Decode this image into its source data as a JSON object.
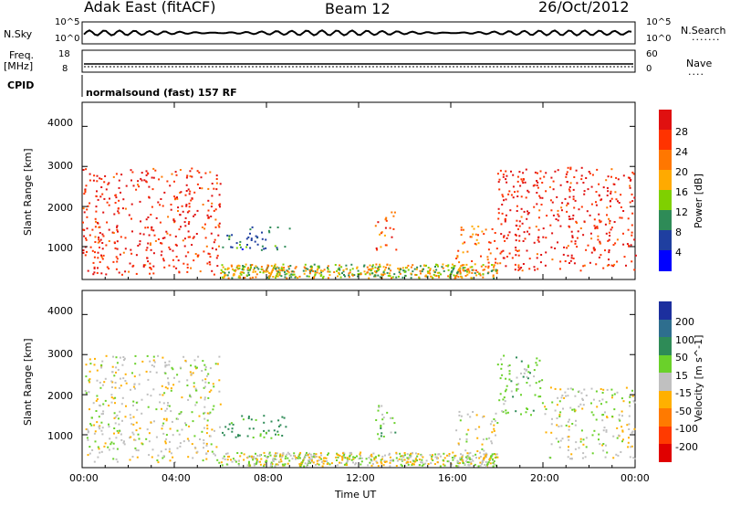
{
  "header": {
    "station": "Adak East (fitACF)",
    "beam": "Beam 12",
    "date": "26/Oct/2012"
  },
  "strip": {
    "nsky_label": "N.Sky",
    "nsky_ticks": [
      "10^5",
      "10^0"
    ],
    "nsearch_label": "N.Search",
    "nsearch_ticks": [
      "10^5",
      "10^0"
    ],
    "freq_label": "Freq.",
    "freq_unit": "[MHz]",
    "freq_ticks": [
      "18",
      "8"
    ],
    "nave_label": "Nave",
    "nave_ticks": [
      "60",
      "0"
    ],
    "cpid_label": "CPID",
    "cpid_value": "normalsound (fast) 157 RF"
  },
  "power_panel": {
    "ylabel": "Slant Range [km]",
    "cbar_label": "Power [dB]",
    "cbar_ticks": [
      "28",
      "24",
      "20",
      "16",
      "12",
      "8",
      "4"
    ],
    "cbar_colors": [
      "#e01010",
      "#ff3300",
      "#ff7700",
      "#ffaa00",
      "#7fd000",
      "#2e8b57",
      "#1f3fa0",
      "#0000ff"
    ]
  },
  "velocity_panel": {
    "ylabel": "Slant Range [km]",
    "cbar_label": "Velocity [m s^-1]",
    "cbar_ticks": [
      "200",
      "100",
      "50",
      "15",
      "-15",
      "-50",
      "-100",
      "-200"
    ],
    "cbar_colors": [
      "#1c2f9e",
      "#2e6e8e",
      "#2e8b57",
      "#6ad12a",
      "#c0c0c0",
      "#ffb000",
      "#ff7a00",
      "#ff3a00",
      "#e00000"
    ]
  },
  "x_axis": {
    "label": "Time UT",
    "ticks": [
      "00:00",
      "04:00",
      "08:00",
      "12:00",
      "16:00",
      "20:00",
      "00:00"
    ]
  },
  "chart_data": [
    {
      "type": "heatmap",
      "title": "Power [dB]",
      "xlabel": "Time UT",
      "ylabel": "Slant Range [km]",
      "xlim": [
        0,
        24
      ],
      "ylim": [
        180,
        4600
      ],
      "yticks": [
        1000,
        2000,
        3000,
        4000
      ],
      "clim": [
        0,
        32
      ],
      "regions": [
        {
          "t_start": 0.0,
          "t_end": 6.0,
          "range_min": 300,
          "range_max": 3000,
          "power_db": 28
        },
        {
          "t_start": 6.0,
          "t_end": 9.0,
          "range_min": 900,
          "range_max": 1500,
          "power_db": 8
        },
        {
          "t_start": 12.7,
          "t_end": 13.6,
          "range_min": 900,
          "range_max": 1900,
          "power_db": 24
        },
        {
          "t_start": 16.2,
          "t_end": 18.0,
          "range_min": 300,
          "range_max": 1600,
          "power_db": 22
        },
        {
          "t_start": 18.0,
          "t_end": 24.0,
          "range_min": 400,
          "range_max": 3000,
          "power_db": 28
        }
      ]
    },
    {
      "type": "heatmap",
      "title": "Velocity [m s^-1]",
      "xlabel": "Time UT",
      "ylabel": "Slant Range [km]",
      "xlim": [
        0,
        24
      ],
      "ylim": [
        180,
        4600
      ],
      "yticks": [
        1000,
        2000,
        3000,
        4000
      ],
      "clim": [
        -250,
        250
      ],
      "regions": [
        {
          "t_start": 0.0,
          "t_end": 6.0,
          "range_min": 300,
          "range_max": 3000,
          "velocity": 0
        },
        {
          "t_start": 6.0,
          "t_end": 9.0,
          "range_min": 900,
          "range_max": 1500,
          "velocity": 60
        },
        {
          "t_start": 12.7,
          "t_end": 13.6,
          "range_min": 900,
          "range_max": 1900,
          "velocity": 30
        },
        {
          "t_start": 16.2,
          "t_end": 18.0,
          "range_min": 300,
          "range_max": 1600,
          "velocity": 0
        },
        {
          "t_start": 18.0,
          "t_end": 20.0,
          "range_min": 1500,
          "range_max": 3000,
          "velocity": 30
        },
        {
          "t_start": 20.0,
          "t_end": 24.0,
          "range_min": 400,
          "range_max": 2200,
          "velocity": 0
        }
      ]
    }
  ]
}
